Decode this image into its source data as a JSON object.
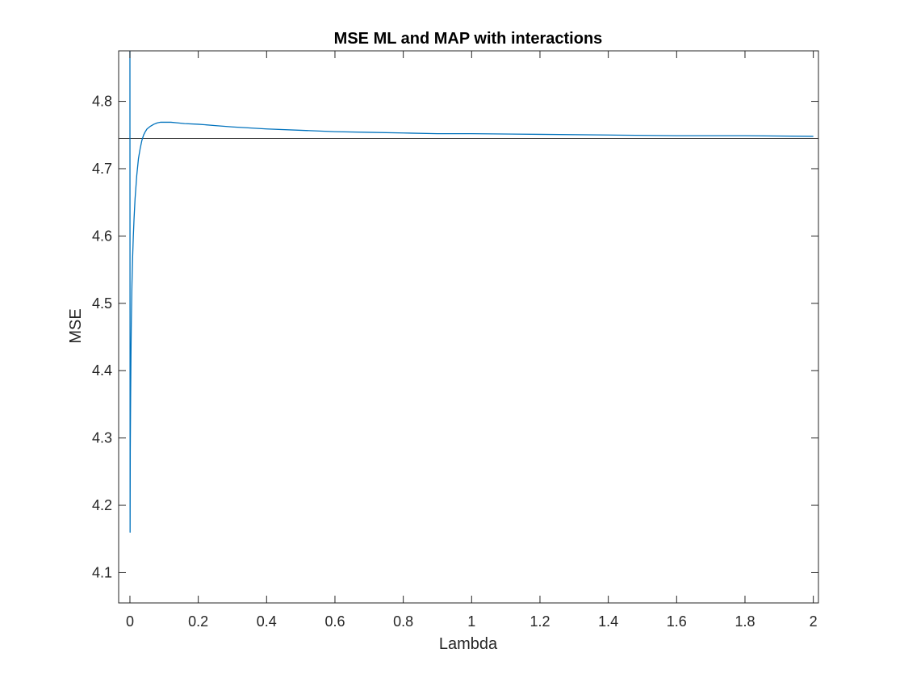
{
  "colors": {
    "background": "#ffffff",
    "axis": "#262626",
    "series": "#0072bd",
    "reference": "#333333"
  },
  "chart_data": {
    "type": "line",
    "title": "MSE ML and MAP with interactions",
    "xlabel": "Lambda",
    "ylabel": "MSE",
    "xlim": [
      -0.033,
      2.015
    ],
    "ylim": [
      4.055,
      4.875
    ],
    "grid": false,
    "legend": "none",
    "x_ticks": [
      0,
      0.2,
      0.4,
      0.6,
      0.8,
      1,
      1.2,
      1.4,
      1.6,
      1.8,
      2
    ],
    "x_tick_labels": [
      "0",
      "0.2",
      "0.4",
      "0.6",
      "0.8",
      "1",
      "1.2",
      "1.4",
      "1.6",
      "1.8",
      "2"
    ],
    "y_ticks": [
      4.1,
      4.2,
      4.3,
      4.4,
      4.5,
      4.6,
      4.7,
      4.8
    ],
    "y_tick_labels": [
      "4.1",
      "4.2",
      "4.3",
      "4.4",
      "4.5",
      "4.6",
      "4.7",
      "4.8"
    ],
    "series": [
      {
        "x": [
          0,
          0.0005,
          0.001,
          0.002,
          0.003,
          0.004,
          0.005,
          0.006,
          0.008,
          0.01,
          0.012,
          0.015,
          0.02,
          0.025,
          0.03,
          0.035,
          0.04,
          0.045,
          0.05,
          0.06,
          0.07,
          0.08,
          0.09,
          0.1,
          0.12,
          0.14,
          0.16,
          0.2,
          0.25,
          0.3,
          0.4,
          0.5,
          0.6,
          0.7,
          0.8,
          0.9,
          1,
          1.2,
          1.4,
          1.6,
          1.8,
          2
        ],
        "y": [
          4.875,
          4.16,
          4.28,
          4.36,
          4.42,
          4.47,
          4.5,
          4.53,
          4.57,
          4.6,
          4.625,
          4.655,
          4.69,
          4.715,
          4.73,
          4.742,
          4.75,
          4.755,
          4.759,
          4.763,
          4.766,
          4.768,
          4.769,
          4.769,
          4.769,
          4.768,
          4.767,
          4.766,
          4.764,
          4.762,
          4.759,
          4.757,
          4.755,
          4.754,
          4.753,
          4.752,
          4.752,
          4.751,
          4.75,
          4.749,
          4.749,
          4.748
        ]
      }
    ],
    "reference_line": {
      "y": 4.745
    }
  }
}
